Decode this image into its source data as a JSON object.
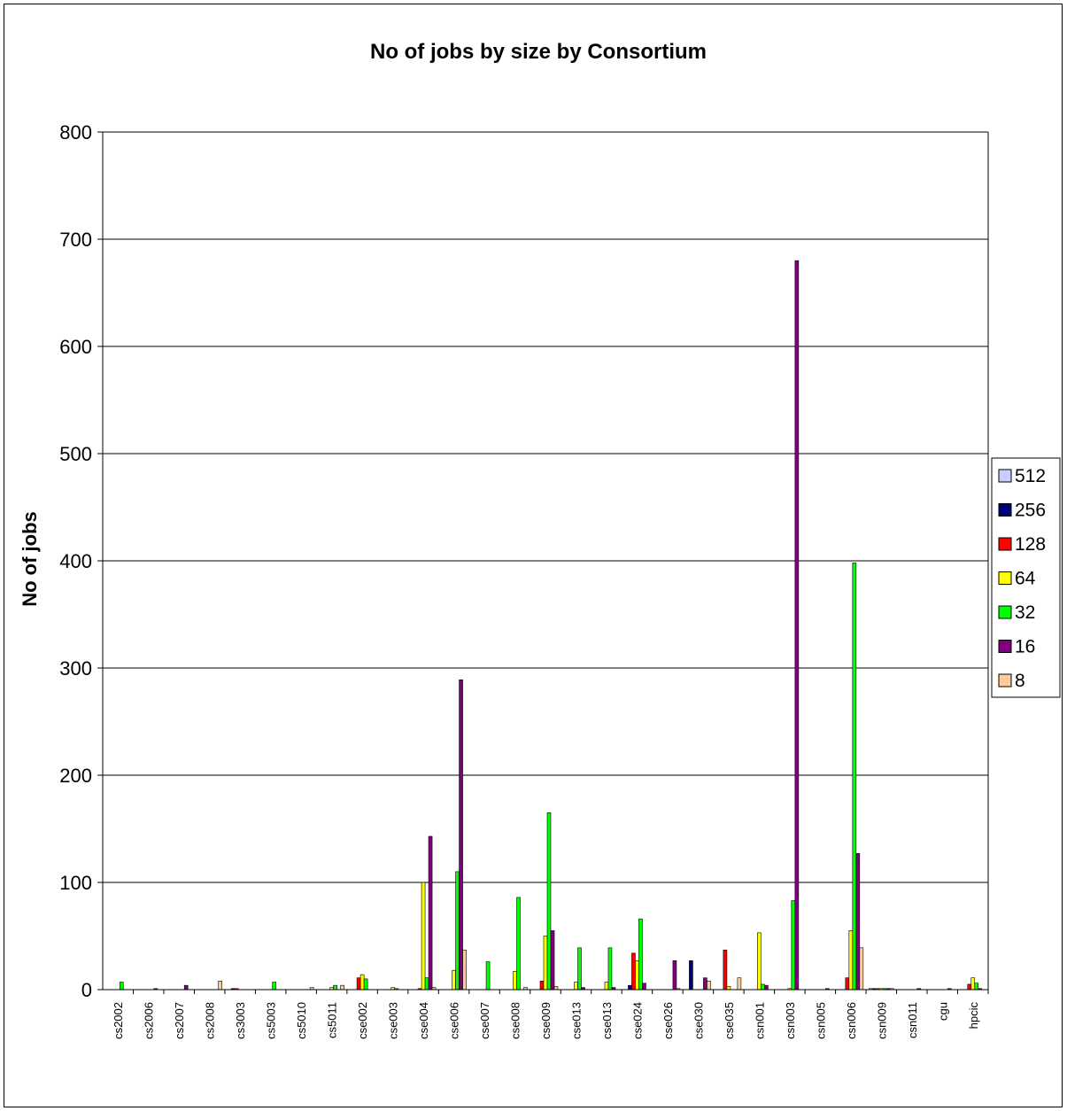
{
  "chart_data": {
    "type": "bar",
    "title": "No of jobs by size by Consortium",
    "xlabel": "",
    "ylabel": "No of jobs",
    "ylim": [
      0,
      800
    ],
    "yticks": [
      0,
      100,
      200,
      300,
      400,
      500,
      600,
      700,
      800
    ],
    "grid": true,
    "legend_position": "right",
    "categories": [
      "cs2002",
      "cs2006",
      "cs2007",
      "cs2008",
      "cs3003",
      "cs5003",
      "cs5010",
      "cs5011",
      "cse002",
      "cse003",
      "cse004",
      "cse006",
      "cse007",
      "cse008",
      "cse009",
      "cse013",
      "cse013",
      "cse024",
      "cse026",
      "cse030",
      "cse035",
      "csn001",
      "csn003",
      "csn005",
      "csn006",
      "csn009",
      "csn011",
      "cgu",
      "hpcic"
    ],
    "category_labels": [
      "cs2002",
      "cs2006",
      "cs2007",
      "cs2008",
      "cs3003",
      "cs5003",
      "cs5010",
      "cs5011",
      "cse002",
      "cse003",
      "cse004",
      "cse006",
      "cse007",
      "cse008",
      "cse009",
      "cse013",
      "cse013",
      "cse024",
      "cse026",
      "cse030",
      "cse035",
      "csn001",
      "csn003",
      "csn005",
      "csn006",
      "csn009",
      "csn011",
      "cgu",
      "hpcic"
    ],
    "series": [
      {
        "name": "512",
        "color": "#ccccff",
        "values": [
          0,
          0,
          0,
          0,
          0,
          0,
          0,
          0,
          0,
          0,
          0,
          0,
          0,
          0,
          0,
          0,
          0,
          0,
          0,
          0,
          0,
          0,
          0,
          0,
          0,
          1,
          0,
          0,
          0
        ]
      },
      {
        "name": "256",
        "color": "#000080",
        "values": [
          0,
          0,
          0,
          0,
          1,
          0,
          0,
          0,
          0,
          0,
          0,
          0,
          0,
          0,
          0,
          0,
          0,
          4,
          0,
          27,
          0,
          0,
          0,
          0,
          0,
          1,
          0,
          0,
          0
        ]
      },
      {
        "name": "128",
        "color": "#ff0000",
        "values": [
          0,
          0,
          0,
          0,
          1,
          0,
          0,
          0,
          11,
          0,
          1,
          0,
          0,
          0,
          8,
          0,
          0,
          34,
          0,
          0,
          37,
          0,
          0,
          0,
          11,
          1,
          0,
          0,
          5
        ]
      },
      {
        "name": "64",
        "color": "#ffff00",
        "values": [
          0,
          0,
          0,
          0,
          0,
          0,
          0,
          2,
          14,
          2,
          100,
          18,
          0,
          17,
          50,
          7,
          7,
          27,
          0,
          0,
          3,
          53,
          1,
          0,
          55,
          1,
          0,
          0,
          11
        ]
      },
      {
        "name": "32",
        "color": "#00ff00",
        "values": [
          7,
          0,
          0,
          0,
          0,
          7,
          0,
          4,
          10,
          1,
          11,
          110,
          26,
          86,
          165,
          39,
          39,
          66,
          0,
          0,
          0,
          5,
          83,
          0,
          398,
          1,
          0,
          0,
          6
        ]
      },
      {
        "name": "16",
        "color": "#800080",
        "values": [
          0,
          1,
          4,
          0,
          0,
          0,
          0,
          0,
          0,
          0,
          143,
          289,
          0,
          0,
          55,
          2,
          2,
          6,
          27,
          11,
          0,
          4,
          680,
          1,
          127,
          1,
          1,
          1,
          1
        ]
      },
      {
        "name": "8",
        "color": "#ffcc99",
        "values": [
          0,
          0,
          0,
          8,
          0,
          0,
          2,
          4,
          0,
          0,
          2,
          37,
          0,
          2,
          3,
          0,
          0,
          0,
          1,
          8,
          11,
          0,
          0,
          0,
          39,
          1,
          0,
          0,
          0
        ]
      }
    ]
  }
}
